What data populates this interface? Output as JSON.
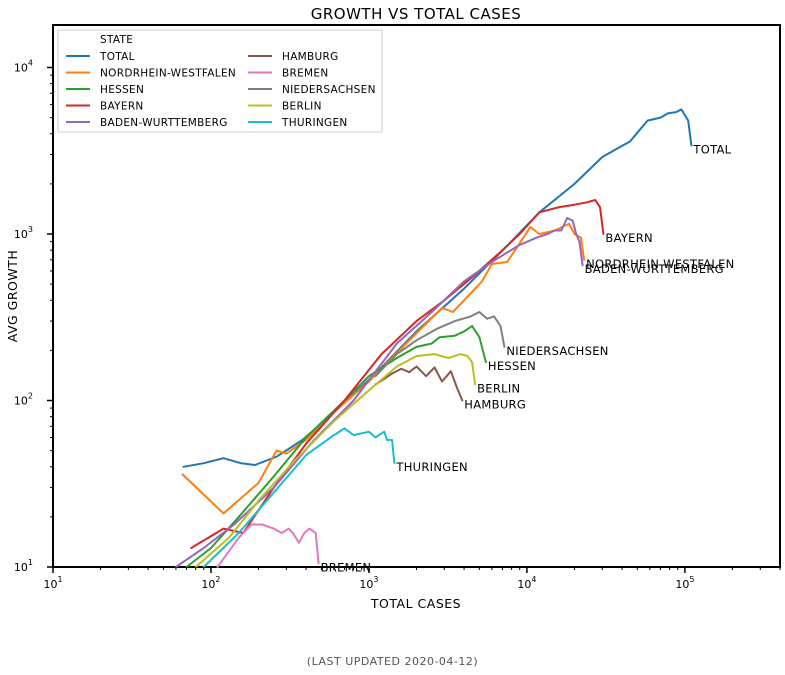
{
  "footer": "(Last updated 2020-04-12)",
  "chart_data": {
    "type": "line",
    "title": "Growth vs Total Cases",
    "xlabel": "Total Cases",
    "ylabel": "Avg Growth",
    "xscale": "log",
    "yscale": "log",
    "xlim": [
      10,
      400000
    ],
    "ylim": [
      10,
      18000
    ],
    "xticks": [
      {
        "value": 10,
        "base": "10",
        "exp": "1"
      },
      {
        "value": 100,
        "base": "10",
        "exp": "2"
      },
      {
        "value": 1000,
        "base": "10",
        "exp": "3"
      },
      {
        "value": 10000,
        "base": "10",
        "exp": "4"
      },
      {
        "value": 100000,
        "base": "10",
        "exp": "5"
      }
    ],
    "yticks": [
      {
        "value": 10,
        "base": "10",
        "exp": "1"
      },
      {
        "value": 100,
        "base": "10",
        "exp": "2"
      },
      {
        "value": 1000,
        "base": "10",
        "exp": "3"
      },
      {
        "value": 10000,
        "base": "10",
        "exp": "4"
      }
    ],
    "grid": false,
    "legend": {
      "title": "State",
      "placement": "top-left",
      "columns": 2
    },
    "series": [
      {
        "name": "Total",
        "label": "Total",
        "color": "#1f77b4",
        "x": [
          67,
          90,
          120,
          155,
          190,
          260,
          380,
          600,
          1100,
          2000,
          4000,
          7500,
          12000,
          20000,
          30000,
          45000,
          58000,
          70000,
          78000,
          88000,
          95000,
          105000,
          110000
        ],
        "y": [
          40,
          42,
          45,
          42,
          41,
          46,
          58,
          85,
          145,
          260,
          470,
          850,
          1350,
          2000,
          2900,
          3600,
          4800,
          5000,
          5300,
          5400,
          5600,
          4800,
          3400
        ]
      },
      {
        "name": "Nordrhein-Westfalen",
        "label": "Nordrhein-Westfalen",
        "color": "#ff7f0e",
        "x": [
          66,
          120,
          200,
          260,
          300,
          400,
          600,
          1000,
          1800,
          2900,
          3400,
          4000,
          5200,
          6000,
          7500,
          9000,
          10500,
          12000,
          15000,
          18500,
          20000,
          22000,
          23000
        ],
        "y": [
          36,
          21,
          32,
          50,
          48,
          58,
          85,
          130,
          230,
          360,
          340,
          400,
          520,
          660,
          680,
          880,
          1100,
          1000,
          1050,
          1150,
          1000,
          950,
          700
        ]
      },
      {
        "name": "Hessen",
        "label": "Hessen",
        "color": "#2ca02c",
        "x": [
          70,
          100,
          150,
          250,
          400,
          700,
          1000,
          1500,
          2000,
          2500,
          2800,
          3500,
          4000,
          4500,
          5000,
          5500
        ],
        "y": [
          10,
          13,
          20,
          35,
          60,
          100,
          140,
          180,
          210,
          220,
          240,
          245,
          260,
          280,
          240,
          170
        ]
      },
      {
        "name": "Bayern",
        "label": "Bayern",
        "color": "#d62728",
        "x": [
          75,
          120,
          160,
          250,
          400,
          700,
          1200,
          2000,
          3000,
          4500,
          6500,
          9000,
          12000,
          16000,
          20000,
          24000,
          27000,
          29000,
          30500
        ],
        "y": [
          13,
          17,
          16,
          30,
          55,
          100,
          190,
          300,
          400,
          550,
          750,
          1000,
          1350,
          1450,
          1500,
          1550,
          1600,
          1450,
          1000
        ]
      },
      {
        "name": "Baden-Wurttemberg",
        "label": "Baden-Wurttemberg",
        "color": "#9467bd",
        "x": [
          60,
          90,
          140,
          250,
          450,
          800,
          1500,
          2500,
          4000,
          6000,
          9000,
          11500,
          13500,
          15000,
          16500,
          18000,
          19500,
          20500,
          21500,
          22500
        ],
        "y": [
          10,
          13,
          18,
          30,
          58,
          100,
          220,
          340,
          520,
          680,
          860,
          950,
          1000,
          1050,
          1050,
          1250,
          1200,
          1000,
          900,
          650
        ]
      },
      {
        "name": "Hamburg",
        "label": "Hamburg",
        "color": "#8c564b",
        "x": [
          1100,
          1250,
          1400,
          1600,
          1800,
          2000,
          2300,
          2600,
          2900,
          3300,
          3600,
          3900
        ],
        "y": [
          125,
          135,
          145,
          155,
          148,
          160,
          140,
          158,
          130,
          150,
          120,
          100
        ]
      },
      {
        "name": "Bremen",
        "label": "Bremen",
        "color": "#e377c2",
        "x": [
          110,
          150,
          180,
          210,
          250,
          280,
          310,
          330,
          360,
          390,
          420,
          460,
          480
        ],
        "y": [
          10,
          15,
          18,
          18,
          17,
          16,
          17,
          16,
          14,
          16,
          17,
          16,
          10.5
        ]
      },
      {
        "name": "Niedersachsen",
        "label": "Niedersachsen",
        "color": "#7f7f7f",
        "x": [
          1100,
          1500,
          2000,
          2700,
          3500,
          4400,
          5000,
          5600,
          6200,
          6800,
          7200
        ],
        "y": [
          140,
          190,
          230,
          270,
          300,
          320,
          340,
          310,
          320,
          280,
          210
        ]
      },
      {
        "name": "Berlin",
        "label": "Berlin",
        "color": "#bcbd22",
        "x": [
          80,
          130,
          200,
          350,
          600,
          1000,
          1500,
          2000,
          2600,
          3200,
          3800,
          4200,
          4500,
          4700
        ],
        "y": [
          10,
          15,
          25,
          45,
          75,
          115,
          160,
          185,
          190,
          180,
          190,
          185,
          170,
          125
        ]
      },
      {
        "name": "Thuringen",
        "label": "Thuringen",
        "color": "#17becf",
        "x": [
          90,
          150,
          250,
          400,
          600,
          700,
          800,
          1000,
          1100,
          1250,
          1300,
          1400,
          1450
        ],
        "y": [
          10,
          16,
          28,
          47,
          62,
          68,
          62,
          65,
          60,
          65,
          58,
          58,
          42
        ]
      }
    ]
  }
}
